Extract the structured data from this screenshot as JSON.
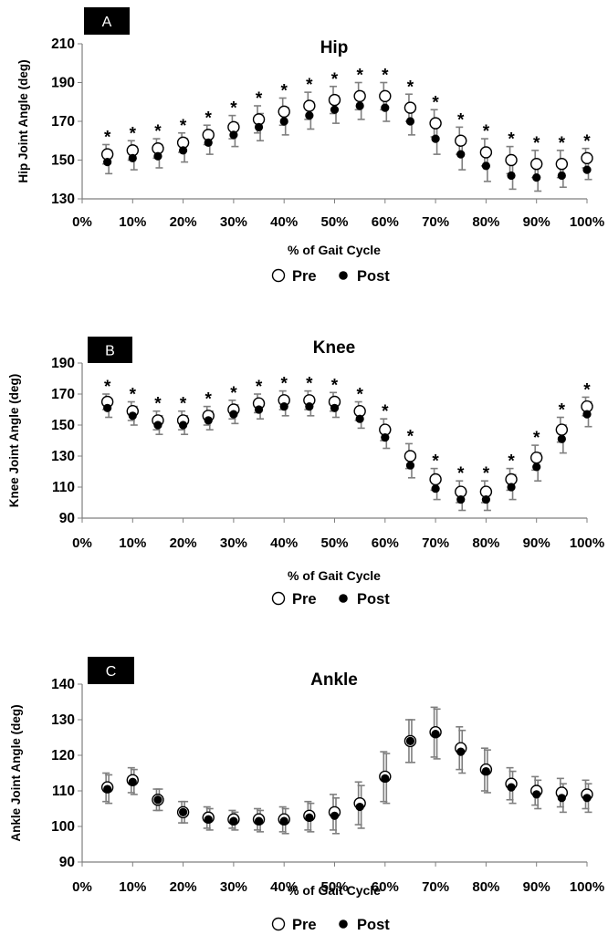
{
  "chart_data": [
    {
      "type": "scatter",
      "panel_label": "A",
      "title": "Hip",
      "ylabel": "Hip Joint Angle (deg)",
      "xlabel": "% of Gait Cycle",
      "ylim": [
        130,
        210
      ],
      "yticks": [
        130,
        150,
        170,
        190,
        210
      ],
      "xticks": [
        "0%",
        "10%",
        "20%",
        "30%",
        "40%",
        "50%",
        "60%",
        "70%",
        "80%",
        "90%",
        "100%"
      ],
      "xlim": [
        0,
        100
      ],
      "grid": false,
      "legend_position": "bottom-center",
      "legend": [
        "Pre",
        "Post"
      ],
      "x": [
        5,
        10,
        15,
        20,
        25,
        30,
        35,
        40,
        45,
        50,
        55,
        60,
        65,
        70,
        75,
        80,
        85,
        90,
        95,
        100
      ],
      "series": [
        {
          "name": "Pre",
          "marker": "open-circle",
          "values": [
            153,
            155,
            156,
            159,
            163,
            167,
            171,
            175,
            178,
            181,
            183,
            183,
            177,
            169,
            160,
            154,
            150,
            148,
            148,
            151
          ],
          "error": [
            5,
            5,
            5,
            5,
            5,
            6,
            7,
            7,
            7,
            7,
            7,
            7,
            7,
            7,
            7,
            7,
            7,
            7,
            7,
            5
          ]
        },
        {
          "name": "Post",
          "marker": "filled-circle",
          "values": [
            149,
            151,
            152,
            155,
            159,
            163,
            167,
            170,
            173,
            176,
            178,
            177,
            170,
            161,
            153,
            147,
            142,
            141,
            142,
            145
          ],
          "error": [
            6,
            6,
            6,
            6,
            6,
            6,
            7,
            7,
            7,
            7,
            7,
            7,
            7,
            8,
            8,
            8,
            7,
            7,
            6,
            5
          ]
        }
      ],
      "significance": [
        "*",
        "*",
        "*",
        "*",
        "*",
        "*",
        "*",
        "*",
        "*",
        "*",
        "*",
        "*",
        "*",
        "*",
        "*",
        "*",
        "*",
        "*",
        "*",
        "*"
      ]
    },
    {
      "type": "scatter",
      "panel_label": "B",
      "title": "Knee",
      "ylabel": "Knee Joint Angle (deg)",
      "xlabel": "% of Gait Cycle",
      "ylim": [
        90,
        190
      ],
      "yticks": [
        90,
        110,
        130,
        150,
        170,
        190
      ],
      "xticks": [
        "0%",
        "10%",
        "20%",
        "30%",
        "40%",
        "50%",
        "60%",
        "70%",
        "80%",
        "90%",
        "100%"
      ],
      "xlim": [
        0,
        100
      ],
      "grid": false,
      "legend_position": "bottom-center",
      "legend": [
        "Pre",
        "Post"
      ],
      "x": [
        5,
        10,
        15,
        20,
        25,
        30,
        35,
        40,
        45,
        50,
        55,
        60,
        65,
        70,
        75,
        80,
        85,
        90,
        95,
        100
      ],
      "series": [
        {
          "name": "Pre",
          "marker": "open-circle",
          "values": [
            165,
            159,
            153,
            153,
            156,
            160,
            164,
            166,
            166,
            165,
            159,
            147,
            130,
            115,
            107,
            107,
            115,
            129,
            147,
            162
          ],
          "error": [
            5,
            6,
            6,
            6,
            6,
            6,
            6,
            6,
            6,
            6,
            6,
            7,
            8,
            7,
            7,
            7,
            7,
            8,
            8,
            6
          ]
        },
        {
          "name": "Post",
          "marker": "filled-circle",
          "values": [
            161,
            156,
            150,
            150,
            153,
            157,
            160,
            162,
            162,
            161,
            154,
            142,
            124,
            109,
            102,
            102,
            110,
            123,
            141,
            157
          ],
          "error": [
            6,
            6,
            6,
            6,
            6,
            6,
            6,
            6,
            6,
            6,
            6,
            7,
            8,
            7,
            7,
            7,
            8,
            9,
            9,
            8
          ]
        }
      ],
      "significance": [
        "*",
        "*",
        "*",
        "*",
        "*",
        "*",
        "*",
        "*",
        "*",
        "*",
        "*",
        "*",
        "*",
        "*",
        "*",
        "*",
        "*",
        "*",
        "*",
        "*"
      ]
    },
    {
      "type": "scatter",
      "panel_label": "C",
      "title": "Ankle",
      "ylabel": "Ankle Joint Angle (deg)",
      "xlabel": "% of Gait Cycle",
      "ylim": [
        90,
        140
      ],
      "yticks": [
        90,
        100,
        110,
        120,
        130,
        140
      ],
      "xticks": [
        "0%",
        "10%",
        "20%",
        "30%",
        "40%",
        "50%",
        "60%",
        "70%",
        "80%",
        "90%",
        "100%"
      ],
      "xlim": [
        0,
        100
      ],
      "grid": false,
      "legend_position": "bottom-center",
      "legend": [
        "Pre",
        "Post"
      ],
      "x": [
        5,
        10,
        15,
        20,
        25,
        30,
        35,
        40,
        45,
        50,
        55,
        60,
        65,
        70,
        75,
        80,
        85,
        90,
        95,
        100
      ],
      "series": [
        {
          "name": "Pre",
          "marker": "open-circle",
          "values": [
            111,
            113,
            107.5,
            104,
            102.5,
            102,
            102,
            102,
            103,
            104,
            106.5,
            114,
            124,
            126.5,
            122,
            116,
            112,
            110,
            109.5,
            109
          ],
          "error": [
            4,
            3.5,
            3,
            3,
            3,
            2.5,
            3,
            3.5,
            4,
            5,
            6,
            7,
            6,
            7,
            6,
            6,
            4.5,
            4,
            4,
            4
          ]
        },
        {
          "name": "Post",
          "marker": "filled-circle",
          "values": [
            110.5,
            112.5,
            107.5,
            104,
            102,
            101.5,
            101.5,
            101.5,
            102.5,
            103,
            105.5,
            113.5,
            124,
            126,
            121,
            115.5,
            111,
            109,
            108,
            108
          ],
          "error": [
            4,
            3.5,
            3,
            3,
            3,
            2.5,
            3,
            3.5,
            4,
            5,
            6,
            7,
            6,
            7,
            6,
            6,
            4.5,
            4,
            4,
            4
          ]
        }
      ],
      "significance": [
        "",
        "",
        "",
        "",
        "",
        "",
        "",
        "",
        "",
        "",
        "",
        "",
        "",
        "",
        "",
        "",
        "",
        "",
        "",
        ""
      ]
    }
  ]
}
